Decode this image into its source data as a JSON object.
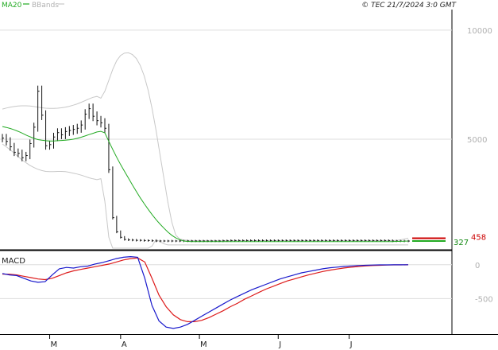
{
  "header": {
    "legend_ma20": "MA20",
    "legend_bbands": "BBands",
    "source_line": "© TEC 21/7/2024 3:0 GMT"
  },
  "colors": {
    "ma20": "#22aa22",
    "bbands": "#c8c8c8",
    "price": "#111111",
    "macd": "#1a1acc",
    "signal": "#dd1a1a",
    "marker_red": "#cc0000",
    "grid": "#dddddd",
    "panel_sep": "#000000"
  },
  "chart_data": [
    {
      "type": "line",
      "panel": "price",
      "yticks": [
        "10000",
        "5000"
      ],
      "ytick_values": [
        10000,
        5000
      ],
      "ylim": [
        0,
        10800
      ],
      "xticks": [
        "M",
        "A",
        "M",
        "J",
        "J"
      ],
      "xtick_index": [
        12,
        30,
        50,
        70,
        88
      ],
      "n_periods": 104,
      "last_value_label": "327",
      "last_value_label_2": "458",
      "last_value": 327,
      "last_value_2": 458,
      "series": [
        {
          "name": "MA20",
          "values": [
            5580,
            5540,
            5490,
            5430,
            5360,
            5280,
            5190,
            5110,
            5040,
            4980,
            4950,
            4930,
            4920,
            4920,
            4930,
            4940,
            4950,
            4970,
            5000,
            5040,
            5090,
            5150,
            5210,
            5270,
            5330,
            5360,
            5290,
            4900,
            4530,
            4170,
            3840,
            3520,
            3210,
            2900,
            2600,
            2310,
            2040,
            1780,
            1540,
            1310,
            1110,
            920,
            740,
            590,
            470,
            390,
            330,
            310,
            300,
            300,
            300,
            300,
            300,
            300,
            300,
            300,
            300,
            300,
            300,
            300,
            300,
            300,
            300,
            300,
            300,
            300,
            300,
            300,
            300,
            300,
            300,
            300,
            300,
            300,
            300,
            300,
            300,
            300,
            300,
            300,
            300,
            300,
            300,
            300,
            300,
            300,
            300,
            300,
            300,
            300,
            300,
            300,
            300,
            300,
            300,
            300,
            300,
            300,
            300,
            300,
            310,
            315,
            320,
            327
          ]
        },
        {
          "name": "BBands",
          "upper": [
            6380,
            6430,
            6470,
            6500,
            6520,
            6530,
            6530,
            6520,
            6500,
            6470,
            6440,
            6420,
            6410,
            6410,
            6420,
            6440,
            6470,
            6510,
            6560,
            6620,
            6690,
            6770,
            6850,
            6920,
            6960,
            6880,
            7200,
            7700,
            8200,
            8600,
            8840,
            8950,
            8960,
            8880,
            8700,
            8380,
            7900,
            7230,
            6400,
            5400,
            4300,
            3200,
            2100,
            1200,
            600,
            420,
            380,
            360,
            350,
            350,
            350,
            350,
            350,
            350,
            350,
            350,
            350,
            350,
            350,
            350,
            350,
            350,
            350,
            350,
            350,
            350,
            350,
            350,
            350,
            350,
            350,
            350,
            350,
            350,
            350,
            350,
            350,
            350,
            350,
            350,
            350,
            350,
            350,
            350,
            350,
            350,
            350,
            350,
            350,
            350,
            350,
            350,
            350,
            350,
            350,
            350,
            350,
            350,
            350,
            350,
            360,
            380,
            420,
            458
          ],
          "lower": [
            4780,
            4650,
            4510,
            4360,
            4200,
            4050,
            3920,
            3800,
            3700,
            3620,
            3560,
            3520,
            3510,
            3510,
            3520,
            3520,
            3510,
            3480,
            3440,
            3400,
            3350,
            3290,
            3230,
            3180,
            3140,
            3190,
            2150,
            500,
            -1200,
            -1900,
            -2250,
            -2350,
            -2300,
            -2100,
            -1800,
            -1400,
            -900,
            -400,
            100,
            400,
            300,
            200,
            150,
            150,
            150,
            150,
            150,
            150,
            150,
            150,
            150,
            150,
            150,
            150,
            150,
            150,
            150,
            150,
            150,
            150,
            150,
            150,
            150,
            150,
            150,
            150,
            150,
            150,
            150,
            150,
            150,
            150,
            150,
            150,
            150,
            150,
            150,
            150,
            150,
            150,
            150,
            150,
            150,
            150,
            150,
            150,
            150,
            150,
            150,
            150,
            150,
            150,
            150,
            150,
            150,
            150,
            150,
            150,
            150,
            150,
            150,
            150,
            150,
            150
          ]
        },
        {
          "name": "Price",
          "values": [
            5050,
            4900,
            4650,
            4400,
            4350,
            4150,
            4250,
            4800,
            5550,
            7200,
            6100,
            4700,
            4750,
            5100,
            5300,
            5200,
            5350,
            5400,
            5450,
            5500,
            5650,
            6150,
            6400,
            6050,
            5850,
            5750,
            5500,
            3600,
            1400,
            750,
            500,
            400,
            380,
            370,
            360,
            360,
            350,
            350,
            340,
            330,
            330,
            330,
            330,
            330,
            330,
            330,
            330,
            330,
            330,
            330,
            330,
            330,
            330,
            330,
            330,
            330,
            340,
            340,
            350,
            350,
            350,
            350,
            350,
            350,
            350,
            350,
            350,
            350,
            350,
            350,
            350,
            350,
            350,
            350,
            350,
            350,
            350,
            350,
            350,
            350,
            350,
            350,
            350,
            350,
            350,
            350,
            350,
            350,
            350,
            350,
            350,
            350,
            350,
            350,
            350,
            350,
            350,
            350,
            350,
            330,
            330,
            330,
            327,
            327
          ]
        }
      ]
    },
    {
      "type": "line",
      "panel": "macd",
      "title": "MACD",
      "yticks": [
        "0",
        "-500"
      ],
      "ytick_values": [
        0,
        -500
      ],
      "ylim": [
        -1000,
        150
      ],
      "series": [
        {
          "name": "MACD",
          "values": [
            -130,
            -150,
            -160,
            -200,
            -240,
            -260,
            -250,
            -150,
            -60,
            -40,
            -50,
            -30,
            -20,
            10,
            30,
            60,
            90,
            110,
            120,
            110,
            -200,
            -600,
            -830,
            -920,
            -940,
            -920,
            -880,
            -820,
            -760,
            -700,
            -640,
            -580,
            -520,
            -470,
            -420,
            -370,
            -330,
            -290,
            -250,
            -210,
            -180,
            -150,
            -120,
            -100,
            -80,
            -60,
            -45,
            -35,
            -25,
            -18,
            -12,
            -8,
            -5,
            -3,
            -2,
            -1,
            -1,
            0
          ]
        },
        {
          "name": "Signal",
          "values": [
            -140,
            -140,
            -150,
            -170,
            -190,
            -210,
            -220,
            -200,
            -160,
            -120,
            -90,
            -70,
            -50,
            -30,
            -10,
            10,
            40,
            70,
            90,
            100,
            40,
            -200,
            -450,
            -620,
            -740,
            -810,
            -840,
            -840,
            -820,
            -780,
            -730,
            -680,
            -620,
            -570,
            -510,
            -460,
            -410,
            -360,
            -320,
            -280,
            -240,
            -210,
            -180,
            -150,
            -125,
            -100,
            -80,
            -63,
            -48,
            -36,
            -26,
            -18,
            -12,
            -8,
            -5,
            -3,
            -2,
            -1
          ]
        }
      ]
    }
  ]
}
